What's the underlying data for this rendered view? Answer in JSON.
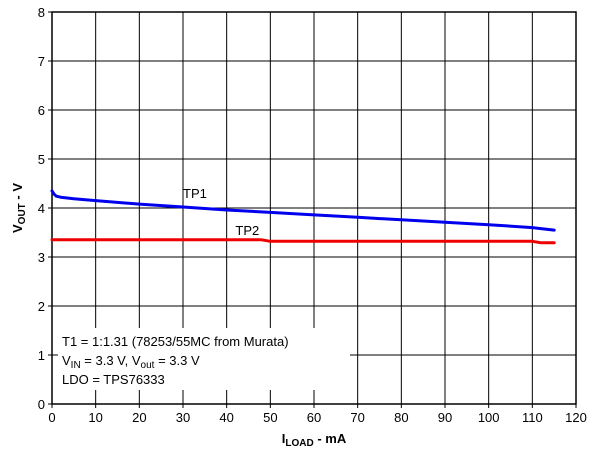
{
  "chart_data": {
    "type": "line",
    "xlabel": {
      "main": "I",
      "sub": "LOAD",
      "rest": " - mA"
    },
    "ylabel": {
      "main": "V",
      "sub": "OUT",
      "rest": " - V"
    },
    "xlim": [
      0,
      120
    ],
    "ylim": [
      0,
      8
    ],
    "xticks": [
      0,
      10,
      20,
      30,
      40,
      50,
      60,
      70,
      80,
      90,
      100,
      110,
      120
    ],
    "yticks": [
      0,
      1,
      2,
      3,
      4,
      5,
      6,
      7,
      8
    ],
    "grid": true,
    "series": [
      {
        "name": "TP1",
        "color": "#0000ee",
        "x": [
          0,
          0.5,
          1,
          2,
          5,
          10,
          20,
          30,
          40,
          50,
          60,
          70,
          80,
          90,
          100,
          110,
          113,
          115
        ],
        "y": [
          4.35,
          4.28,
          4.24,
          4.22,
          4.19,
          4.15,
          4.08,
          4.02,
          3.96,
          3.91,
          3.86,
          3.81,
          3.76,
          3.71,
          3.66,
          3.6,
          3.57,
          3.55
        ]
      },
      {
        "name": "TP2",
        "color": "#ee0000",
        "x": [
          0,
          10,
          20,
          30,
          40,
          48,
          50,
          60,
          70,
          80,
          90,
          100,
          110,
          112,
          115
        ],
        "y": [
          3.35,
          3.35,
          3.35,
          3.35,
          3.35,
          3.35,
          3.32,
          3.32,
          3.32,
          3.32,
          3.32,
          3.32,
          3.32,
          3.29,
          3.29
        ]
      }
    ],
    "annotations": {
      "line1": "T1 = 1:1.31 (78253/55MC from Murata)",
      "line2_a": "V",
      "line2_a_sub": "IN",
      "line2_b": " = 3.3 V, V",
      "line2_b_sub": "out",
      "line2_c": " = 3.3 V",
      "line3": "LDO = TPS76333"
    }
  }
}
